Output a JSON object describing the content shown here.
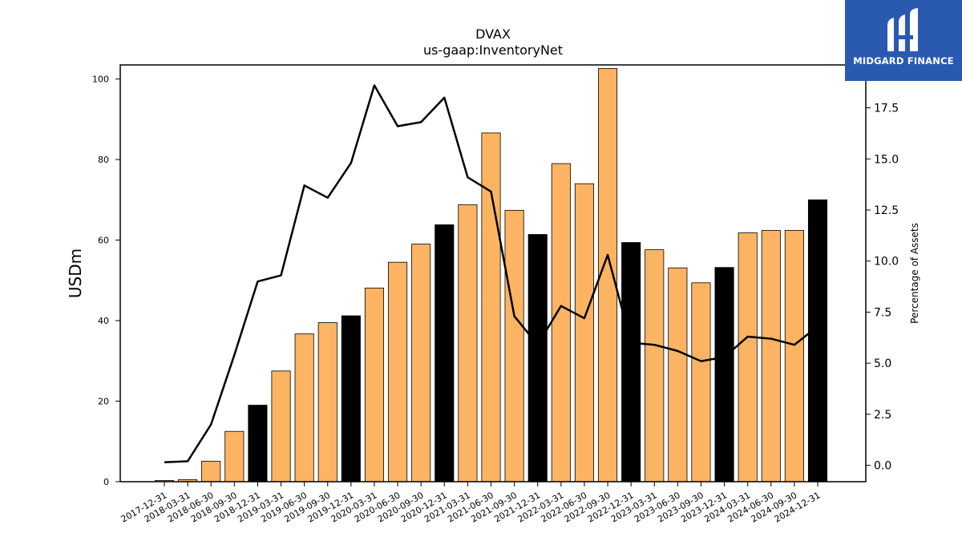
{
  "chart_data": {
    "type": "bar",
    "title": "DVAX",
    "subtitle": "us-gaap:InventoryNet",
    "ylabel": "USDm",
    "y2label": "Percentage of Assets",
    "ylim": [
      0,
      103.5
    ],
    "y2lim": [
      -0.8,
      19.6
    ],
    "yticks": [
      0,
      20,
      40,
      60,
      80,
      100
    ],
    "y2ticks": [
      0.0,
      2.5,
      5.0,
      7.5,
      10.0,
      12.5,
      15.0,
      17.5
    ],
    "categories": [
      "2017-12-31",
      "2018-03-31",
      "2018-06-30",
      "2018-09-30",
      "2018-12-31",
      "2019-03-31",
      "2019-06-30",
      "2019-09-30",
      "2019-12-31",
      "2020-03-31",
      "2020-06-30",
      "2020-09-30",
      "2020-12-31",
      "2021-03-31",
      "2021-06-30",
      "2021-09-30",
      "2021-12-31",
      "2022-03-31",
      "2022-06-30",
      "2022-09-30",
      "2022-12-31",
      "2023-03-31",
      "2023-06-30",
      "2023-09-30",
      "2023-12-31",
      "2024-03-31",
      "2024-06-30",
      "2024-09-30",
      "2024-12-31"
    ],
    "series": [
      {
        "type": "bar",
        "values": [
          0.3,
          0.5,
          5.1,
          12.5,
          19.0,
          27.5,
          36.7,
          39.5,
          41.2,
          48.1,
          54.5,
          59.0,
          63.8,
          68.8,
          86.6,
          67.4,
          61.4,
          79.0,
          74.0,
          102.6,
          59.4,
          57.6,
          53.1,
          49.4,
          53.2,
          61.8,
          62.4,
          62.4,
          70.0
        ],
        "colors": [
          "#fdb462",
          "#fdb462",
          "#fdb462",
          "#fdb462",
          "#000000",
          "#fdb462",
          "#fdb462",
          "#fdb462",
          "#000000",
          "#fdb462",
          "#fdb462",
          "#fdb462",
          "#000000",
          "#fdb462",
          "#fdb462",
          "#fdb462",
          "#000000",
          "#fdb462",
          "#fdb462",
          "#fdb462",
          "#000000",
          "#fdb462",
          "#fdb462",
          "#fdb462",
          "#000000",
          "#fdb462",
          "#fdb462",
          "#fdb462",
          "#000000"
        ]
      },
      {
        "type": "line",
        "axis": "right",
        "color": "#000000",
        "values": [
          0.15,
          0.2,
          2.0,
          5.4,
          9.0,
          9.3,
          13.7,
          13.1,
          14.8,
          18.6,
          16.6,
          16.8,
          18.0,
          14.1,
          13.4,
          7.3,
          5.9,
          7.8,
          7.2,
          10.3,
          6.0,
          5.9,
          5.6,
          5.1,
          5.3,
          6.3,
          6.2,
          5.9,
          6.8
        ]
      }
    ],
    "grid": false
  },
  "logo": {
    "text": "MIDGARD FINANCE",
    "background": "#2a5ab0"
  }
}
